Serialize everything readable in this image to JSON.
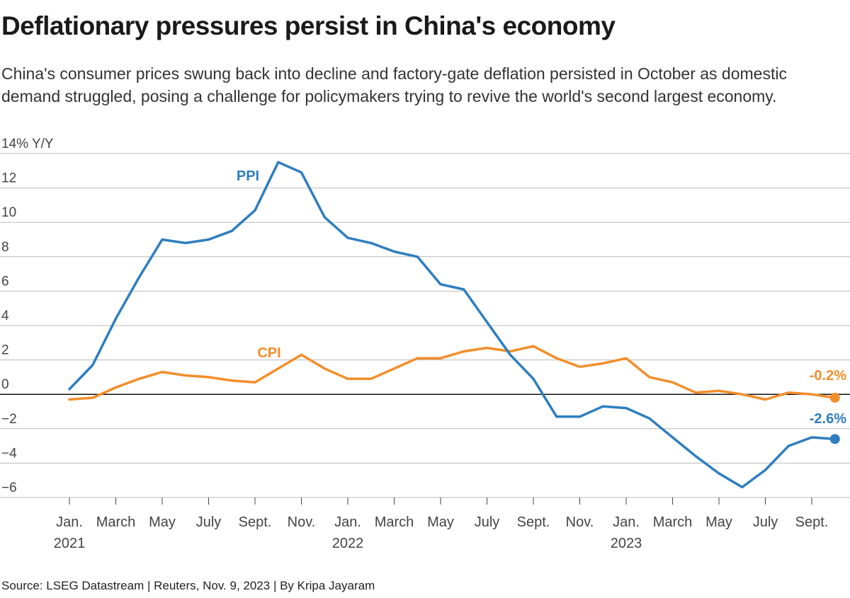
{
  "header": {
    "title": "Deflationary pressures persist in China's economy",
    "subtitle": "China's consumer prices swung back into decline and factory-gate deflation persisted in October as domestic demand struggled, posing a challenge for policymakers trying to revive the world's second largest economy."
  },
  "footer": {
    "source": "Source: LSEG Datastream | Reuters, Nov. 9, 2023 | By Kripa Jayaram"
  },
  "colors": {
    "ppi": "#2e7ebf",
    "cpi": "#f28e2b"
  },
  "chart_data": {
    "type": "line",
    "title": "Deflationary pressures persist in China's economy",
    "ylabel": "% Y/Y",
    "xlabel": "",
    "ylim": [
      -6,
      14
    ],
    "y_ticks": [
      {
        "value": 14,
        "label": "14% Y/Y"
      },
      {
        "value": 12,
        "label": "12"
      },
      {
        "value": 10,
        "label": "10"
      },
      {
        "value": 8,
        "label": "8"
      },
      {
        "value": 6,
        "label": "6"
      },
      {
        "value": 4,
        "label": "4"
      },
      {
        "value": 2,
        "label": "2"
      },
      {
        "value": 0,
        "label": "0"
      },
      {
        "value": -2,
        "label": "−2"
      },
      {
        "value": -4,
        "label": "−4"
      },
      {
        "value": -6,
        "label": "−6"
      }
    ],
    "x": [
      "2021-01",
      "2021-02",
      "2021-03",
      "2021-04",
      "2021-05",
      "2021-06",
      "2021-07",
      "2021-08",
      "2021-09",
      "2021-10",
      "2021-11",
      "2021-12",
      "2022-01",
      "2022-02",
      "2022-03",
      "2022-04",
      "2022-05",
      "2022-06",
      "2022-07",
      "2022-08",
      "2022-09",
      "2022-10",
      "2022-11",
      "2022-12",
      "2023-01",
      "2023-02",
      "2023-03",
      "2023-04",
      "2023-05",
      "2023-06",
      "2023-07",
      "2023-08",
      "2023-09",
      "2023-10"
    ],
    "x_ticks": [
      {
        "index": 0,
        "label": "Jan.",
        "year": "2021"
      },
      {
        "index": 2,
        "label": "March"
      },
      {
        "index": 4,
        "label": "May"
      },
      {
        "index": 6,
        "label": "July"
      },
      {
        "index": 8,
        "label": "Sept."
      },
      {
        "index": 10,
        "label": "Nov."
      },
      {
        "index": 12,
        "label": "Jan.",
        "year": "2022"
      },
      {
        "index": 14,
        "label": "March"
      },
      {
        "index": 16,
        "label": "May"
      },
      {
        "index": 18,
        "label": "July"
      },
      {
        "index": 20,
        "label": "Sept."
      },
      {
        "index": 22,
        "label": "Nov."
      },
      {
        "index": 24,
        "label": "Jan.",
        "year": "2023"
      },
      {
        "index": 26,
        "label": "March"
      },
      {
        "index": 28,
        "label": "May"
      },
      {
        "index": 30,
        "label": "July"
      },
      {
        "index": 32,
        "label": "Sept."
      }
    ],
    "series": [
      {
        "name": "PPI",
        "label_pos": "upper-left of peak",
        "values": [
          0.3,
          1.7,
          4.4,
          6.8,
          9.0,
          8.8,
          9.0,
          9.5,
          10.7,
          13.5,
          12.9,
          10.3,
          9.1,
          8.8,
          8.3,
          8.0,
          6.4,
          6.1,
          4.2,
          2.3,
          0.9,
          -1.3,
          -1.3,
          -0.7,
          -0.8,
          -1.4,
          -2.5,
          -3.6,
          -4.6,
          -5.4,
          -4.4,
          -3.0,
          -2.5,
          -2.6
        ],
        "end_label": "-2.6%"
      },
      {
        "name": "CPI",
        "label_pos": "middle",
        "values": [
          -0.3,
          -0.2,
          0.4,
          0.9,
          1.3,
          1.1,
          1.0,
          0.8,
          0.7,
          1.5,
          2.3,
          1.5,
          0.9,
          0.9,
          1.5,
          2.1,
          2.1,
          2.5,
          2.7,
          2.5,
          2.8,
          2.1,
          1.6,
          1.8,
          2.1,
          1.0,
          0.7,
          0.1,
          0.2,
          0.0,
          -0.3,
          0.1,
          0.0,
          -0.2
        ],
        "end_label": "-0.2%"
      }
    ]
  }
}
